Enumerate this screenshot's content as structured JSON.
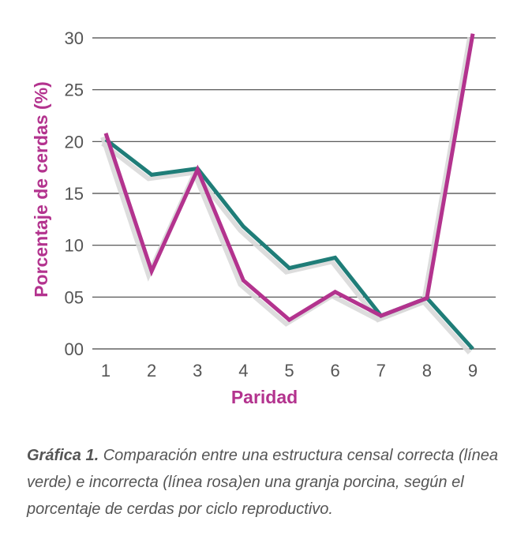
{
  "chart_data": {
    "type": "line",
    "xlabel": "Paridad",
    "ylabel": "Porcentaje de cerdas (%)",
    "x": [
      1,
      2,
      3,
      4,
      5,
      6,
      7,
      8,
      9
    ],
    "ytick_labels": [
      "00",
      "05",
      "10",
      "15",
      "20",
      "25",
      "30"
    ],
    "yticks": [
      0,
      5,
      10,
      15,
      20,
      25,
      30
    ],
    "ylim": [
      0,
      30
    ],
    "xlim": [
      1,
      9
    ],
    "grid": "horizontal",
    "series": [
      {
        "color": "#1f7d78",
        "values": [
          20.2,
          16.8,
          17.4,
          11.8,
          7.8,
          8.8,
          3.2,
          4.9,
          0.0
        ]
      },
      {
        "color": "#b3338e",
        "values": [
          20.8,
          7.5,
          17.3,
          6.6,
          2.8,
          5.5,
          3.2,
          4.9,
          30.4
        ]
      }
    ],
    "colors": {
      "title": "#b3338e",
      "grid": "#444444",
      "shadow": "#d9d9d9"
    }
  },
  "caption": {
    "label": "Gráfica 1.",
    "text": " Comparación entre una estructura censal correcta (línea verde) e incorrecta (línea rosa)en una granja porcina, según el porcentaje de cerdas por ciclo reproductivo."
  }
}
